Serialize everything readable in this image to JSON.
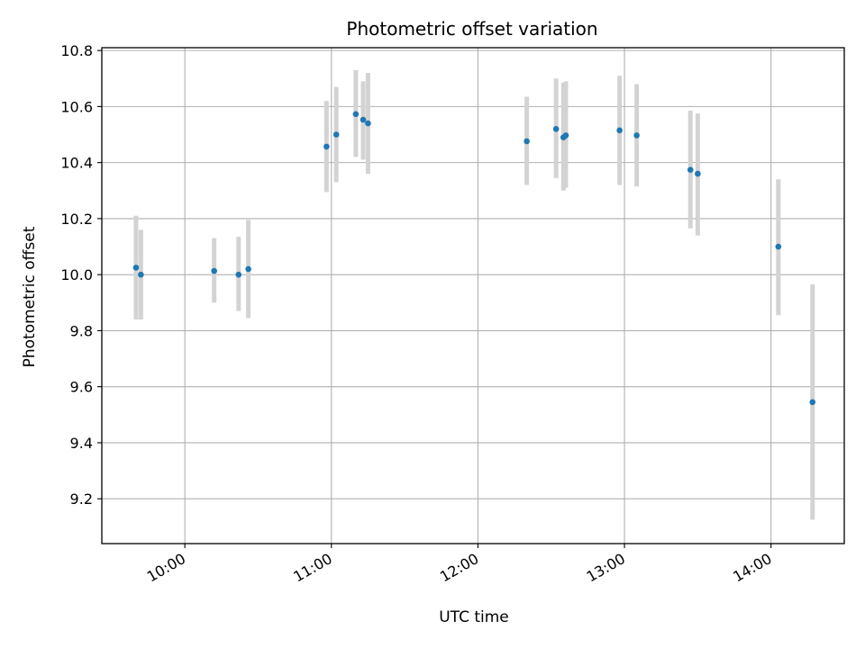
{
  "chart_data": {
    "type": "scatter",
    "title": "Photometric offset variation",
    "xlabel": "UTC time",
    "ylabel": "Photometric offset",
    "x_format": "HH:MM",
    "xlim": [
      "09:26",
      "14:30"
    ],
    "ylim": [
      9.04,
      10.81
    ],
    "x_ticks": [
      "10:00",
      "11:00",
      "12:00",
      "13:00",
      "14:00"
    ],
    "y_ticks": [
      9.2,
      9.4,
      9.6,
      9.8,
      10.0,
      10.2,
      10.4,
      10.6,
      10.8
    ],
    "y_tick_labels": [
      "9.2",
      "9.4",
      "9.6",
      "9.8",
      "10.0",
      "10.2",
      "10.4",
      "10.6",
      "10.8"
    ],
    "grid": true,
    "marker_color": "#1f77b4",
    "errorbar_color": "#d3d3d3",
    "points": [
      {
        "x": "09:40",
        "y": 10.025,
        "ylo": 9.84,
        "yhi": 10.21
      },
      {
        "x": "09:42",
        "y": 10.0,
        "ylo": 9.84,
        "yhi": 10.16
      },
      {
        "x": "10:12",
        "y": 10.013,
        "ylo": 9.9,
        "yhi": 10.13
      },
      {
        "x": "10:22",
        "y": 10.0,
        "ylo": 9.87,
        "yhi": 10.135
      },
      {
        "x": "10:26",
        "y": 10.02,
        "ylo": 9.845,
        "yhi": 10.195
      },
      {
        "x": "10:58",
        "y": 10.457,
        "ylo": 10.295,
        "yhi": 10.62
      },
      {
        "x": "11:02",
        "y": 10.5,
        "ylo": 10.33,
        "yhi": 10.67
      },
      {
        "x": "11:10",
        "y": 10.573,
        "ylo": 10.42,
        "yhi": 10.73
      },
      {
        "x": "11:13",
        "y": 10.553,
        "ylo": 10.41,
        "yhi": 10.69
      },
      {
        "x": "11:15",
        "y": 10.54,
        "ylo": 10.36,
        "yhi": 10.72
      },
      {
        "x": "12:20",
        "y": 10.476,
        "ylo": 10.32,
        "yhi": 10.635
      },
      {
        "x": "12:32",
        "y": 10.52,
        "ylo": 10.345,
        "yhi": 10.7
      },
      {
        "x": "12:35",
        "y": 10.49,
        "ylo": 10.3,
        "yhi": 10.685
      },
      {
        "x": "12:36",
        "y": 10.497,
        "ylo": 10.31,
        "yhi": 10.69
      },
      {
        "x": "12:58",
        "y": 10.515,
        "ylo": 10.32,
        "yhi": 10.71
      },
      {
        "x": "13:05",
        "y": 10.497,
        "ylo": 10.315,
        "yhi": 10.68
      },
      {
        "x": "13:27",
        "y": 10.374,
        "ylo": 10.165,
        "yhi": 10.585
      },
      {
        "x": "13:30",
        "y": 10.36,
        "ylo": 10.14,
        "yhi": 10.575
      },
      {
        "x": "14:03",
        "y": 10.1,
        "ylo": 9.855,
        "yhi": 10.34
      },
      {
        "x": "14:17",
        "y": 9.545,
        "ylo": 9.125,
        "yhi": 9.965
      }
    ]
  }
}
